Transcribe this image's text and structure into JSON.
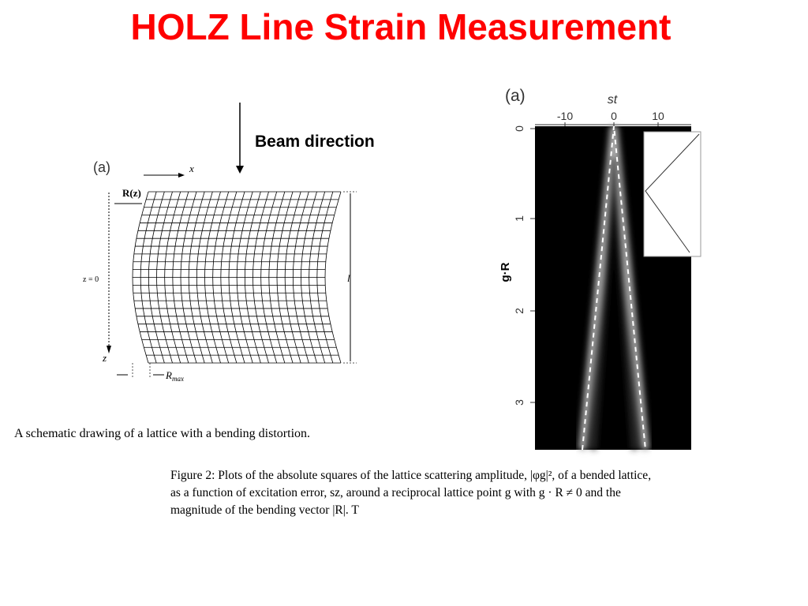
{
  "title": "HOLZ Line Strain Measurement",
  "beam_label": "Beam direction",
  "left_figure": {
    "panel": "(a)",
    "x_label": "x",
    "r_label": "R(z)",
    "z0_label": "z = 0",
    "z_label": "z",
    "l_label": "l",
    "rmax_label": "R",
    "rmax_sub": "max",
    "caption": "A schematic drawing of a lattice with a bending distortion."
  },
  "right_figure": {
    "panel": "(a)",
    "x_label": "st",
    "x_ticks": [
      "-10",
      "0",
      "10"
    ],
    "y_ticks": [
      "0",
      "1",
      "2",
      "3"
    ],
    "y_label": "g·R",
    "caption": [
      "Figure 2: Plots of the absolute squares of the lattice scattering amplitude, |φg|², of a bended lattice,",
      "as a function of excitation error, sz, around a reciprocal lattice point g with g · R ≠ 0 and the",
      "magnitude of the bending vector |R|. T"
    ]
  }
}
